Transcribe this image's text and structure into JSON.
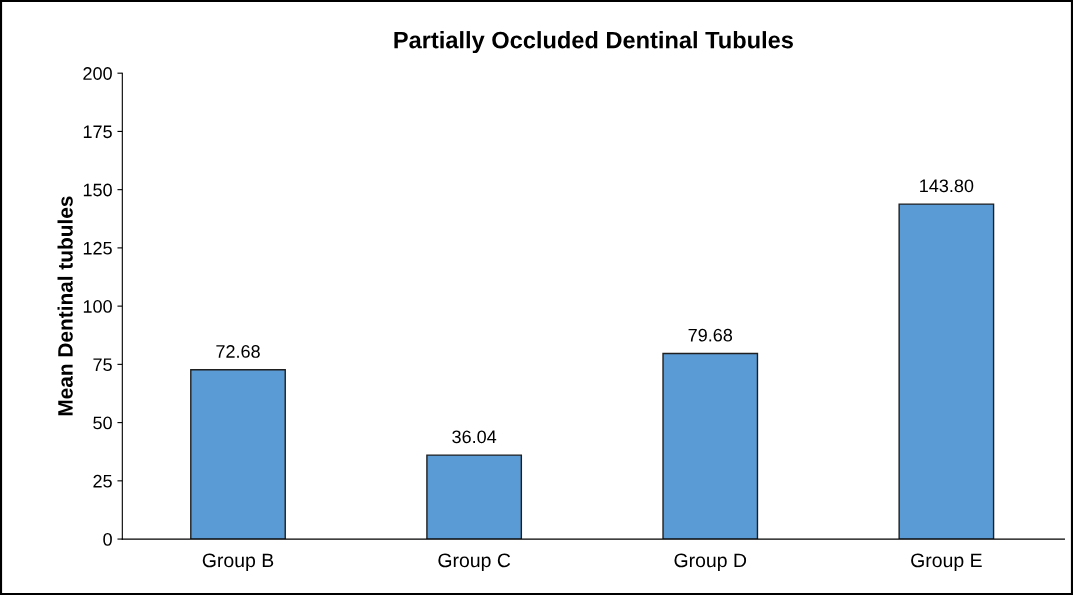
{
  "chart_data": {
    "type": "bar",
    "title": "Partially Occluded Dentinal Tubules",
    "ylabel": "Mean Dentinal tubules",
    "categories": [
      "Group B",
      "Group C",
      "Group D",
      "Group E"
    ],
    "values": [
      72.68,
      36.04,
      79.68,
      143.8
    ],
    "value_labels": [
      "72.68",
      "36.04",
      "79.68",
      "143.80"
    ],
    "color": "#5b9bd5",
    "ylim": [
      0,
      200
    ],
    "yticks": [
      0,
      25,
      50,
      75,
      100,
      125,
      150,
      175,
      200
    ],
    "grid": false,
    "legend": false
  }
}
